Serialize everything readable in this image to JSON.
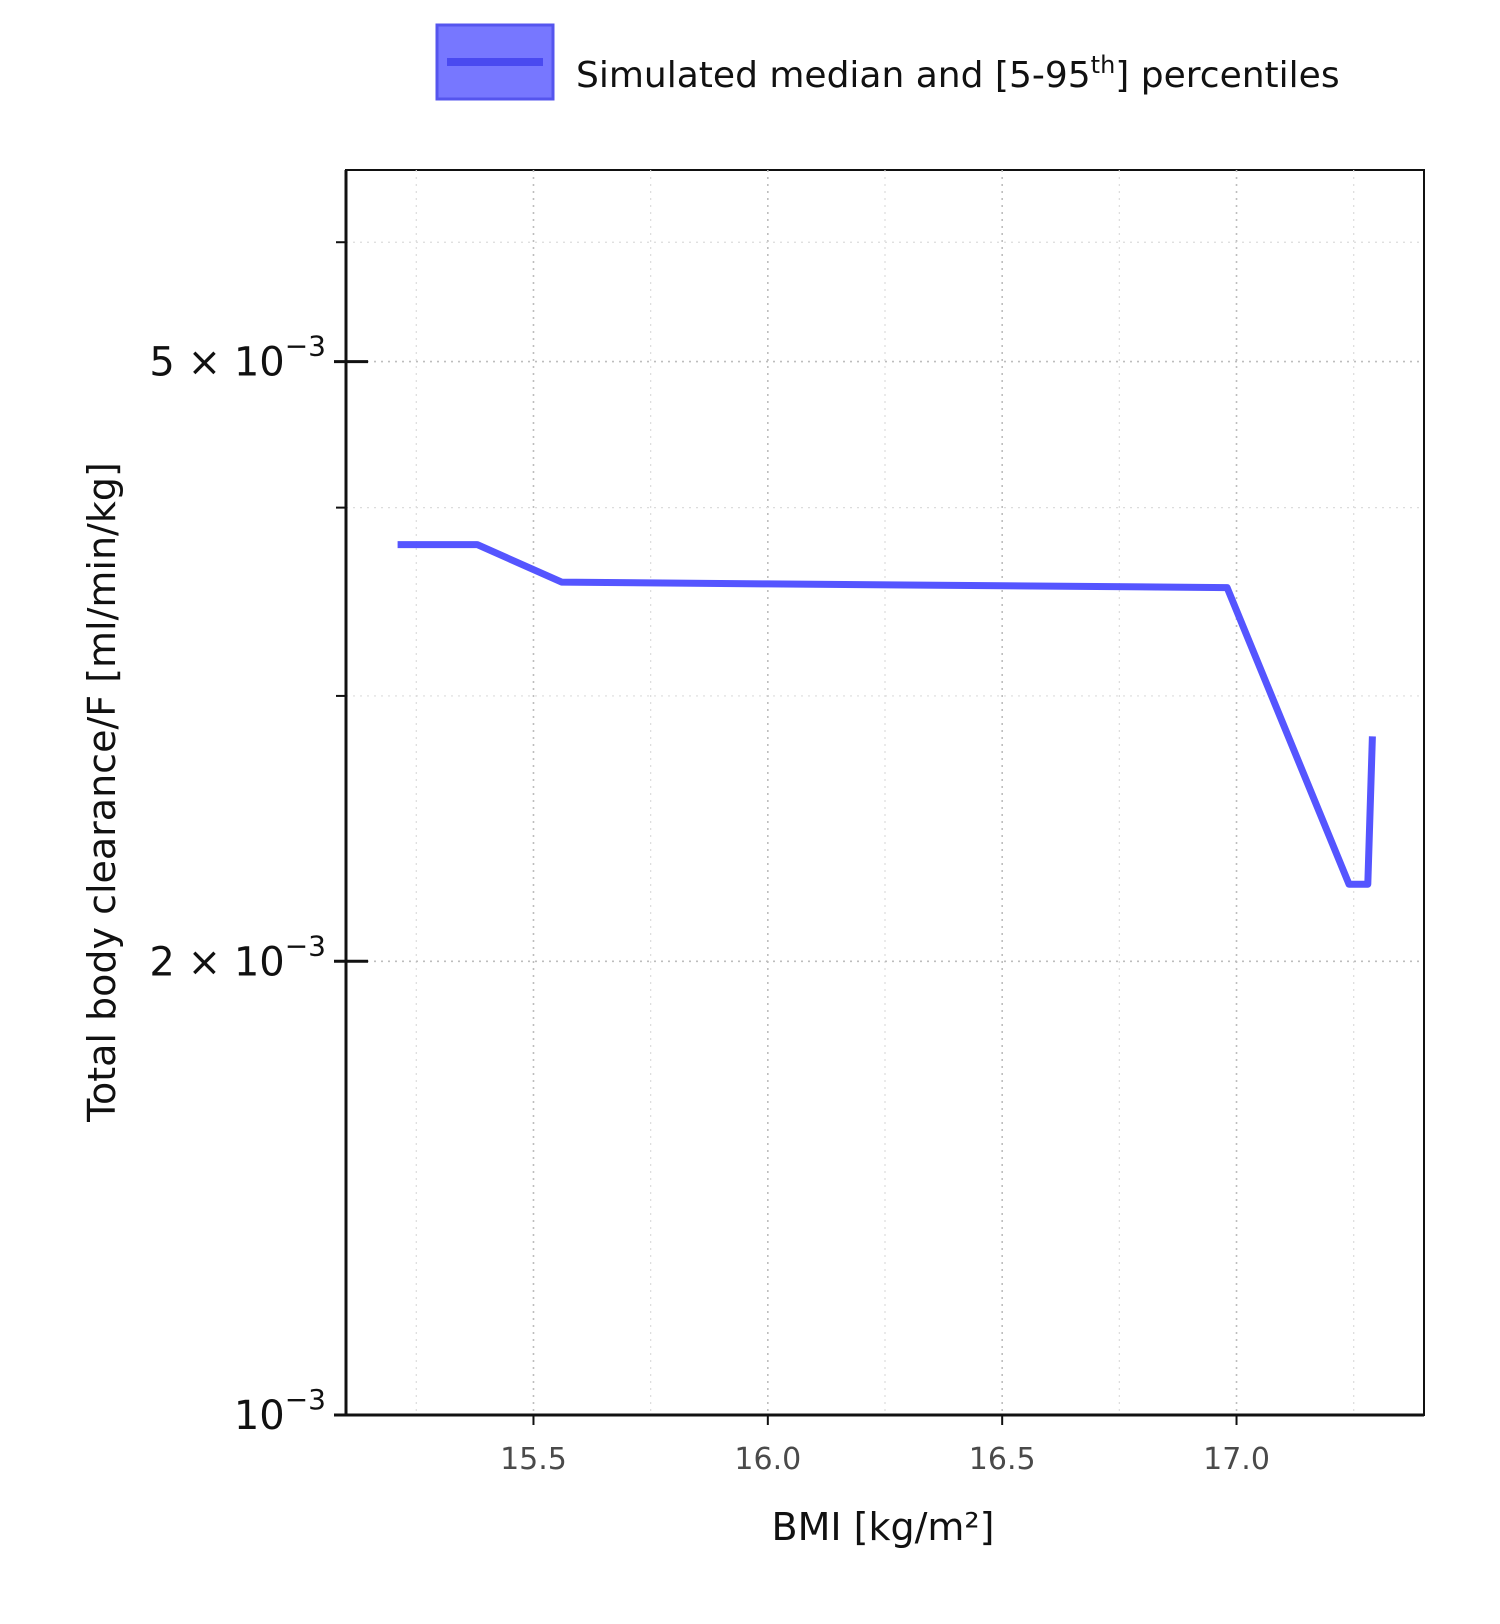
{
  "chart_data": {
    "type": "line",
    "title": "",
    "xlabel": "BMI [kg/m²]",
    "ylabel": "Total body clearance/F [ml/min/kg]",
    "xlim": [
      15.1,
      17.4
    ],
    "ylim": [
      0.001,
      0.0067
    ],
    "yscale": "log",
    "grid": true,
    "legend_position": "top",
    "legend_label_main": "Simulated median and [5-95",
    "legend_label_sup": "th",
    "legend_label_end": "] percentiles",
    "x_ticks": [
      {
        "value": 15.5,
        "label": "15.5"
      },
      {
        "value": 16.0,
        "label": "16.0"
      },
      {
        "value": 16.5,
        "label": "16.5"
      },
      {
        "value": 17.0,
        "label": "17.0"
      }
    ],
    "x_minor_ticks": [
      15.25,
      15.75,
      16.25,
      16.75,
      17.25
    ],
    "y_labeled_ticks": [
      {
        "value": 0.005,
        "base": "5 × 10",
        "exp": "−3"
      },
      {
        "value": 0.002,
        "base": "2 × 10",
        "exp": "−3"
      },
      {
        "value": 0.001,
        "base": "10",
        "exp": "−3"
      }
    ],
    "y_minor_ticks": [
      0.003,
      0.004,
      0.006
    ],
    "series": [
      {
        "name": "Simulated median and [5-95th] percentiles",
        "color": "#5555ff",
        "x": [
          15.21,
          15.38,
          15.56,
          16.0,
          16.5,
          16.98,
          17.24,
          17.28,
          17.29
        ],
        "y": [
          0.00378,
          0.00378,
          0.00357,
          0.00356,
          0.00355,
          0.00354,
          0.00225,
          0.00225,
          0.00282
        ]
      }
    ]
  }
}
